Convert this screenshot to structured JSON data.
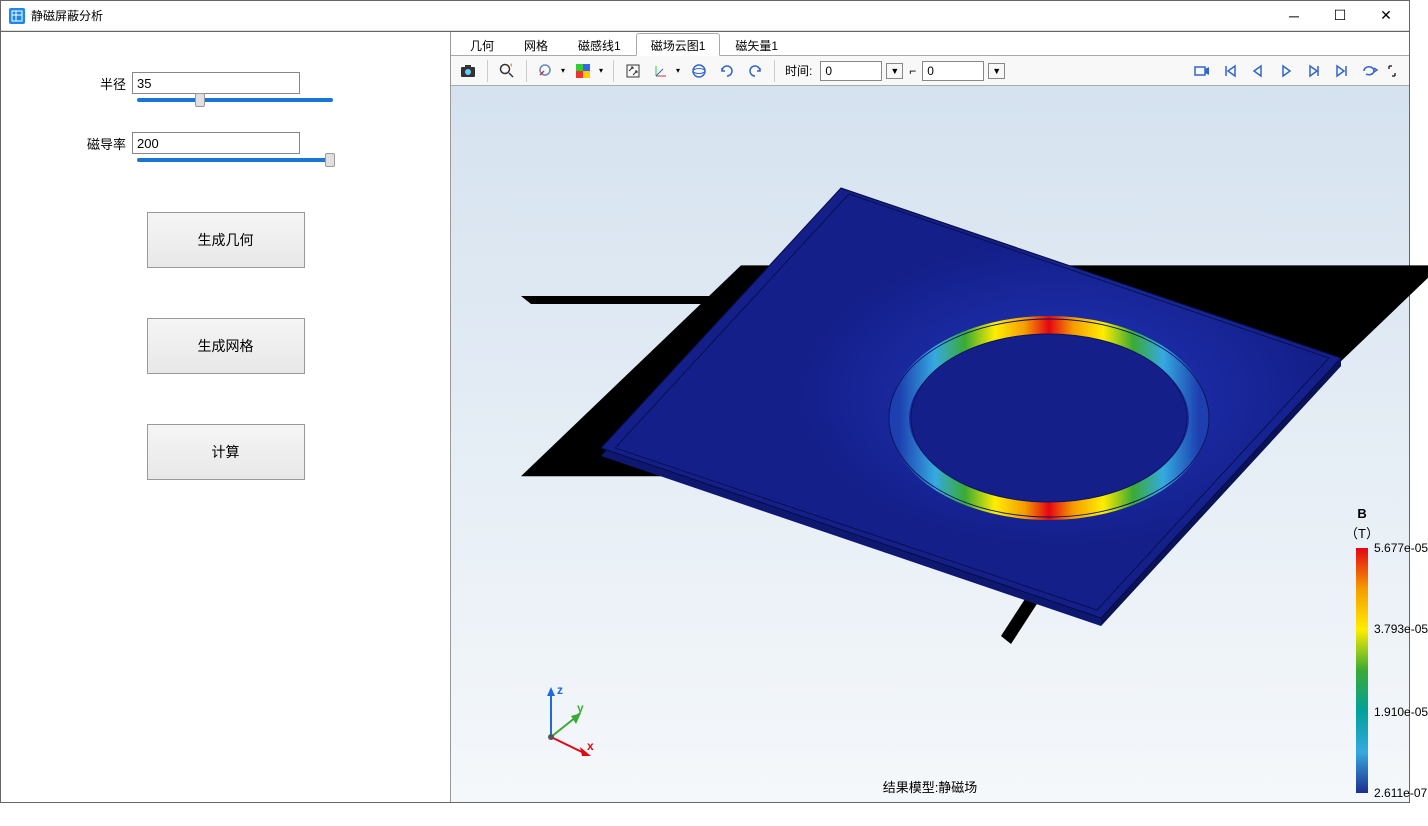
{
  "window": {
    "title": "静磁屏蔽分析"
  },
  "params": {
    "radius_label": "半径",
    "radius_value": "35",
    "radius_slider_pct": 30,
    "perm_label": "磁导率",
    "perm_value": "200",
    "perm_slider_pct": 96
  },
  "buttons": {
    "gen_geom": "生成几何",
    "gen_mesh": "生成网格",
    "compute": "计算"
  },
  "tabs": {
    "items": [
      "几何",
      "网格",
      "磁感线1",
      "磁场云图1",
      "磁矢量1"
    ],
    "active_index": 3
  },
  "toolbar": {
    "time_label": "时间:",
    "time_value": "0",
    "step_value": "0"
  },
  "legend": {
    "title": "B",
    "unit": "（T）",
    "ticks": [
      {
        "pos": 0,
        "label": "5.677e-05"
      },
      {
        "pos": 33,
        "label": "3.793e-05"
      },
      {
        "pos": 67,
        "label": "1.910e-05"
      },
      {
        "pos": 100,
        "label": "2.611e-07"
      }
    ],
    "gradient": [
      "#e30613",
      "#f59c00",
      "#ffed00",
      "#3aaa35",
      "#00a19a",
      "#36a9e1",
      "#1d2f8f"
    ]
  },
  "viewport": {
    "footer": "结果模型:静磁场",
    "plate_color": "#1a2a9c",
    "plate_edge": "#0a1560",
    "ring_gradient": [
      "#1d2f8f",
      "#36a9e1",
      "#3aaa35",
      "#ffed00",
      "#f59c00",
      "#e30613",
      "#f59c00",
      "#ffed00",
      "#3aaa35",
      "#36a9e1",
      "#1d2f8f"
    ],
    "axes": {
      "x": "#e30613",
      "y": "#3aaa35",
      "z": "#1d6ae3"
    }
  }
}
